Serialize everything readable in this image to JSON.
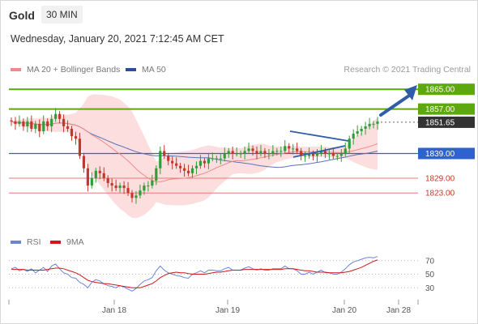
{
  "header": {
    "symbol": "Gold",
    "timeframe": "30 MIN",
    "datetime": "Wednesday, January 20, 2021 7:12:45 AM CET"
  },
  "legend": {
    "ma20_label": "MA 20 + Bollinger Bands",
    "ma50_label": "MA 50",
    "copyright": "Research © 2021 Trading Central",
    "rsi_label": "RSI",
    "rsi_ma_label": "9MA"
  },
  "colors": {
    "up_candle": "#2f9e3a",
    "down_candle": "#c0392b",
    "bollinger": "#fbd3d3",
    "ma20": "#f08a8a",
    "ma50": "#5b73b8",
    "resistance": "#5ca80e",
    "support": "#2e62cf",
    "target_line": "#ee7777",
    "arrow": "#2f5ea7",
    "current": "#333333",
    "rsi": "#6b85d6",
    "rsi_ma": "#d01818"
  },
  "chart_data": {
    "type": "candlestick",
    "y_range": [
      1807,
      1870
    ],
    "x_ticks": [
      "Jan 18",
      "Jan 19",
      "Jan 20",
      "Jan 28"
    ],
    "levels": [
      {
        "value": 1865.0,
        "label": "1865.00",
        "kind": "resistance"
      },
      {
        "value": 1857.0,
        "label": "1857.00",
        "kind": "resistance"
      },
      {
        "value": 1851.65,
        "label": "1851.65",
        "kind": "current"
      },
      {
        "value": 1839.0,
        "label": "1839.00",
        "kind": "pivot"
      },
      {
        "value": 1829.0,
        "label": "1829.00",
        "kind": "support"
      },
      {
        "value": 1823.0,
        "label": "1823.00",
        "kind": "support"
      }
    ],
    "close": [
      1852,
      1851,
      1852,
      1850,
      1852,
      1849,
      1851,
      1848,
      1852,
      1850,
      1853,
      1855,
      1853,
      1850,
      1849,
      1846,
      1845,
      1838,
      1833,
      1826,
      1829,
      1832,
      1831,
      1829,
      1827,
      1826,
      1825,
      1826,
      1825,
      1823,
      1821,
      1822,
      1824,
      1826,
      1826,
      1828,
      1833,
      1840,
      1838,
      1836,
      1835,
      1834,
      1833,
      1832,
      1831,
      1833,
      1834,
      1836,
      1835,
      1837,
      1837,
      1837,
      1837,
      1839,
      1840,
      1839,
      1839,
      1839,
      1840,
      1841,
      1840,
      1839,
      1840,
      1839,
      1839,
      1840,
      1840,
      1840,
      1842,
      1841,
      1841,
      1840,
      1838,
      1838,
      1839,
      1838,
      1839,
      1840,
      1839,
      1839,
      1838,
      1838,
      1839,
      1841,
      1845,
      1847,
      1848,
      1849,
      1850,
      1851,
      1851,
      1852
    ],
    "rsi": {
      "levels": [
        70,
        50,
        30
      ],
      "rsi": [
        58,
        60,
        55,
        57,
        54,
        58,
        52,
        56,
        60,
        54,
        62,
        65,
        58,
        52,
        50,
        45,
        44,
        38,
        35,
        30,
        38,
        42,
        40,
        36,
        33,
        32,
        30,
        33,
        31,
        28,
        25,
        29,
        35,
        40,
        42,
        45,
        55,
        62,
        56,
        52,
        50,
        48,
        47,
        45,
        44,
        50,
        52,
        55,
        52,
        56,
        56,
        55,
        55,
        58,
        60,
        56,
        56,
        56,
        59,
        61,
        58,
        56,
        58,
        56,
        56,
        58,
        58,
        58,
        62,
        58,
        58,
        55,
        50,
        50,
        53,
        50,
        53,
        56,
        52,
        52,
        50,
        50,
        53,
        58,
        64,
        68,
        70,
        72,
        74,
        75,
        74,
        76
      ],
      "ma9": [
        57,
        57,
        57,
        57,
        56,
        56,
        56,
        56,
        56,
        57,
        58,
        59,
        59,
        58,
        56,
        54,
        52,
        49,
        45,
        41,
        39,
        38,
        37,
        36,
        36,
        35,
        34,
        33,
        32,
        31,
        30,
        30,
        30,
        32,
        34,
        36,
        40,
        45,
        48,
        51,
        52,
        53,
        52,
        52,
        51,
        50,
        50,
        50,
        50,
        51,
        52,
        53,
        53,
        54,
        55,
        56,
        56,
        56,
        57,
        57,
        57,
        57,
        57,
        57,
        57,
        57,
        57,
        57,
        58,
        58,
        58,
        57,
        56,
        55,
        55,
        54,
        53,
        53,
        53,
        52,
        52,
        52,
        52,
        53,
        54,
        56,
        58,
        60,
        63,
        66,
        69,
        71
      ]
    }
  }
}
